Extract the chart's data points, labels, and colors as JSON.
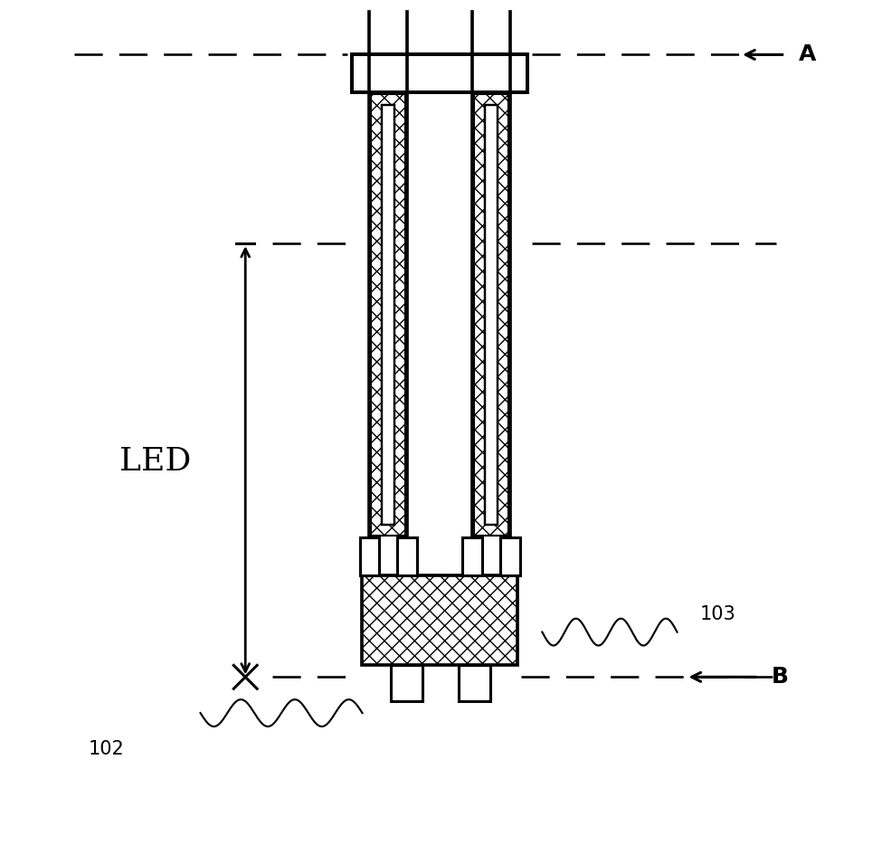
{
  "fig_width": 9.75,
  "fig_height": 9.34,
  "bg_color": "#ffffff",
  "line_color": "#000000",
  "lw": 2.2,
  "label_A": "A",
  "label_B": "B",
  "label_LED": "LED",
  "label_102": "102",
  "label_103": "103",
  "fs_main": 18,
  "fs_ref": 15
}
